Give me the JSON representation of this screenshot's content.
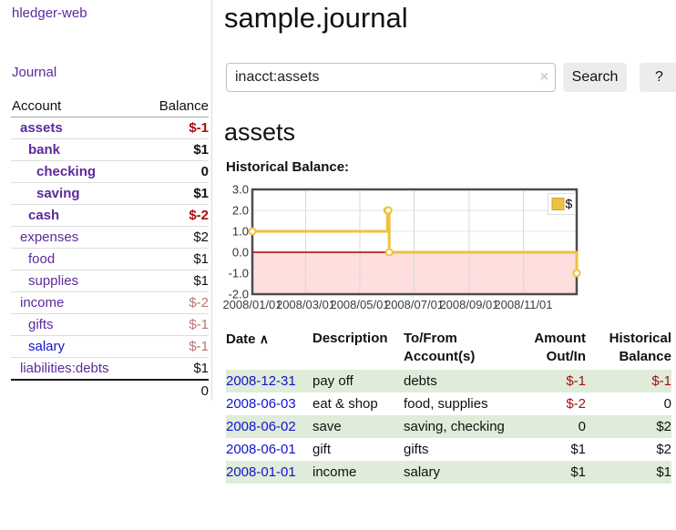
{
  "app": {
    "brand": "hledger-web",
    "nav_journal": "Journal"
  },
  "sidebar": {
    "header": {
      "account": "Account",
      "balance": "Balance"
    },
    "accounts": [
      {
        "name": "assets",
        "balance": "$-1"
      },
      {
        "name": "bank",
        "balance": "$1"
      },
      {
        "name": "checking",
        "balance": "0"
      },
      {
        "name": "saving",
        "balance": "$1"
      },
      {
        "name": "cash",
        "balance": "$-2"
      },
      {
        "name": "expenses",
        "balance": "$2"
      },
      {
        "name": "food",
        "balance": "$1"
      },
      {
        "name": "supplies",
        "balance": "$1"
      },
      {
        "name": "income",
        "balance": "$-2"
      },
      {
        "name": "gifts",
        "balance": "$-1"
      },
      {
        "name": "salary",
        "balance": "$-1"
      },
      {
        "name": "liabilities:debts",
        "balance": "$1"
      }
    ],
    "total": "0"
  },
  "main": {
    "title": "sample.journal",
    "search": {
      "value": "inacct:assets",
      "clear_icon": "×",
      "button": "Search",
      "help": "?"
    },
    "account_heading": "assets",
    "chart_label": "Historical Balance:"
  },
  "chart_data": {
    "type": "line",
    "title": "Historical Balance",
    "series": [
      {
        "name": "$",
        "color": "#edc240",
        "step": true,
        "points": [
          [
            "2008-01-01",
            1
          ],
          [
            "2008-06-01",
            2
          ],
          [
            "2008-06-02",
            2
          ],
          [
            "2008-06-03",
            0
          ],
          [
            "2008-12-31",
            -1
          ]
        ]
      }
    ],
    "x_range": [
      "2008-01-01",
      "2008-12-31"
    ],
    "x_ticks": [
      "2008/01/01",
      "2008/03/01",
      "2008/05/01",
      "2008/07/01",
      "2008/09/01",
      "2008/11/01"
    ],
    "y_ticks": [
      3.0,
      2.0,
      1.0,
      0.0,
      -1.0,
      -2.0
    ],
    "ylim": [
      -2,
      3
    ],
    "grid": true,
    "legend_position": "top-right",
    "negative_fill": "#ffdede",
    "zero_line_color": "#a00000"
  },
  "register": {
    "columns": [
      "Date",
      "Description",
      "To/From Account(s)",
      "Amount Out/In",
      "Historical Balance"
    ],
    "sort_arrow": "∧",
    "rows": [
      {
        "date": "2008-12-31",
        "description": "pay off",
        "accounts": "debts",
        "amount": "$-1",
        "balance": "$-1"
      },
      {
        "date": "2008-06-03",
        "description": "eat & shop",
        "accounts": "food, supplies",
        "amount": "$-2",
        "balance": "0"
      },
      {
        "date": "2008-06-02",
        "description": "save",
        "accounts": "saving, checking",
        "amount": "0",
        "balance": "$2"
      },
      {
        "date": "2008-06-01",
        "description": "gift",
        "accounts": "gifts",
        "amount": "$1",
        "balance": "$2"
      },
      {
        "date": "2008-01-01",
        "description": "income",
        "accounts": "salary",
        "amount": "$1",
        "balance": "$1"
      }
    ]
  }
}
